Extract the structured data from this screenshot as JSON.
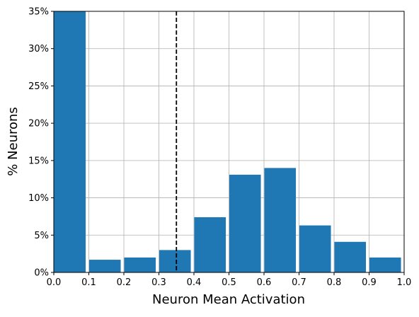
{
  "chart_data": {
    "type": "bar",
    "title": "",
    "xlabel": "Neuron Mean Activation",
    "ylabel": "% Neurons",
    "xlim": [
      0.0,
      1.0
    ],
    "ylim": [
      0,
      35
    ],
    "x_ticks": [
      "0.0",
      "0.1",
      "0.2",
      "0.3",
      "0.4",
      "0.5",
      "0.6",
      "0.7",
      "0.8",
      "0.9",
      "1.0"
    ],
    "y_ticks": [
      "0%",
      "5%",
      "10%",
      "15%",
      "20%",
      "25%",
      "30%",
      "35%"
    ],
    "bins": [
      {
        "start": 0.0,
        "end": 0.1,
        "value": 35.0
      },
      {
        "start": 0.1,
        "end": 0.2,
        "value": 1.7
      },
      {
        "start": 0.2,
        "end": 0.3,
        "value": 2.0
      },
      {
        "start": 0.3,
        "end": 0.4,
        "value": 3.0
      },
      {
        "start": 0.4,
        "end": 0.5,
        "value": 7.4
      },
      {
        "start": 0.5,
        "end": 0.6,
        "value": 13.1
      },
      {
        "start": 0.6,
        "end": 0.7,
        "value": 14.0
      },
      {
        "start": 0.7,
        "end": 0.8,
        "value": 6.3
      },
      {
        "start": 0.8,
        "end": 0.9,
        "value": 4.1
      },
      {
        "start": 0.9,
        "end": 1.0,
        "value": 2.0
      }
    ],
    "threshold_line": {
      "x": 0.35,
      "style": "dashed",
      "color": "#000000"
    },
    "bar_color": "#1f77b4",
    "grid": true
  }
}
